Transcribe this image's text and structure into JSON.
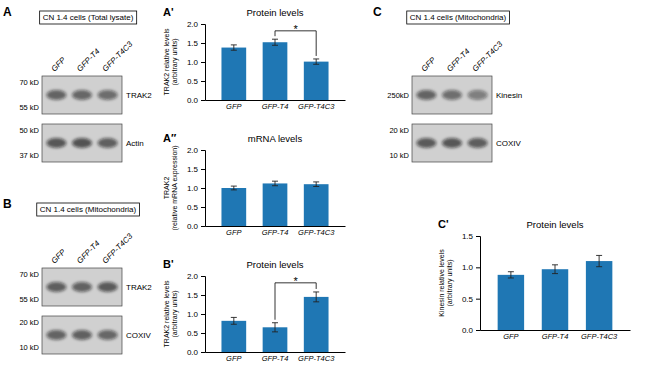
{
  "chart_data": [
    {
      "type": "blot",
      "title": "CN 1.4 cells (Total lysate)",
      "categories": [
        "GFP",
        "GFP-T4",
        "GFP-T4C3"
      ],
      "series": [
        {
          "name": "TRAK2",
          "values": [
            0.72,
            0.7,
            0.66
          ],
          "annotations": [
            "70 kD",
            "55 kD"
          ]
        },
        {
          "name": "Actin",
          "values": [
            0.8,
            0.82,
            0.75
          ],
          "annotations": [
            "50 kD",
            "37 kD"
          ]
        }
      ],
      "annotations": [
        {
          "text": "A"
        }
      ]
    },
    {
      "type": "blot",
      "title": "CN 1.4 cells (Mitochondria)",
      "categories": [
        "GFP",
        "GFP-T4",
        "GFP-T4C3"
      ],
      "series": [
        {
          "name": "TRAK2",
          "values": [
            0.75,
            0.73,
            0.78
          ],
          "annotations": [
            "70 kD",
            "55 kD"
          ]
        },
        {
          "name": "COXIV",
          "values": [
            0.72,
            0.74,
            0.7
          ],
          "annotations": [
            "20 kD",
            "10 kD"
          ]
        }
      ],
      "annotations": [
        {
          "text": "B"
        }
      ]
    },
    {
      "type": "bar",
      "title": "Protein levels",
      "ylabel": "TRAK2 relative levels\n(arbitrary units)",
      "categories": [
        "GFP",
        "GFP-T4",
        "GFP-T4C3"
      ],
      "values": [
        1.38,
        1.52,
        1.01
      ],
      "errors": [
        0.07,
        0.08,
        0.07
      ],
      "ylim": [
        0.0,
        2.0
      ],
      "yticks": [
        {
          "value": 0.0,
          "label": "0.0"
        },
        0.5,
        {
          "value": 1.0,
          "label": "1.0"
        },
        1.5,
        {
          "value": 2.0,
          "label": "2.0"
        }
      ],
      "annotations": [
        {
          "text": "A'"
        },
        {
          "text": "*",
          "categories": [
            "GFP-T4",
            "GFP-T4C3"
          ],
          "y": 1.82
        }
      ]
    },
    {
      "type": "bar",
      "title": "mRNA levels",
      "ylabel": "TRAK2\n(relative mRNA expression)",
      "categories": [
        "GFP",
        "GFP-T4",
        "GFP-T4C3"
      ],
      "values": [
        1.0,
        1.12,
        1.1
      ],
      "errors": [
        0.05,
        0.06,
        0.06
      ],
      "ylim": [
        0.0,
        2.0
      ],
      "yticks": [
        {
          "value": 0.0,
          "label": "0.0"
        },
        0.5,
        {
          "value": 1.0,
          "label": "1.0"
        },
        1.5,
        {
          "value": 2.0,
          "label": "2.0"
        }
      ],
      "annotations": [
        {
          "text": "A″"
        }
      ]
    },
    {
      "type": "bar",
      "title": "Protein levels",
      "ylabel": "TRAK2 relative levels\n(arbitrary units)",
      "categories": [
        "GFP",
        "GFP-T4",
        "GFP-T4C3"
      ],
      "values": [
        0.82,
        0.65,
        1.45
      ],
      "errors": [
        0.09,
        0.12,
        0.13
      ],
      "ylim": [
        0.0,
        2.0
      ],
      "yticks": [
        {
          "value": 0.0,
          "label": "0.0"
        },
        0.5,
        {
          "value": 1.0,
          "label": "1.0"
        },
        1.5,
        {
          "value": 2.0,
          "label": "2.0"
        }
      ],
      "annotations": [
        {
          "text": "B'"
        },
        {
          "text": "*",
          "categories": [
            "GFP-T4",
            "GFP-T4C3"
          ],
          "y": 1.82
        }
      ]
    },
    {
      "type": "blot",
      "title": "CN 1.4 cells (Mitochondria)",
      "categories": [
        "GFP",
        "GFP-T4",
        "GFP-T4C3"
      ],
      "series": [
        {
          "name": "Kinesin",
          "values": [
            0.72,
            0.65,
            0.55
          ],
          "annotations": [
            "250kD"
          ]
        },
        {
          "name": "COXIV",
          "values": [
            0.78,
            0.8,
            0.76
          ],
          "annotations": [
            "20 kD",
            "10 kD"
          ]
        }
      ],
      "annotations": [
        {
          "text": "C"
        }
      ]
    },
    {
      "type": "bar",
      "title": "Protein levels",
      "ylabel": "Kinesin relative levels\n(arbitrary units)",
      "categories": [
        "GFP",
        "GFP-T4",
        "GFP-T4C3"
      ],
      "values": [
        0.88,
        0.97,
        1.1
      ],
      "errors": [
        0.05,
        0.07,
        0.09
      ],
      "ylim": [
        0.0,
        1.5
      ],
      "yticks": [
        {
          "value": 0.0,
          "label": "0.0"
        },
        0.5,
        {
          "value": 1.0,
          "label": "1.0"
        },
        1.5
      ],
      "annotations": [
        {
          "text": "C'"
        }
      ]
    }
  ]
}
